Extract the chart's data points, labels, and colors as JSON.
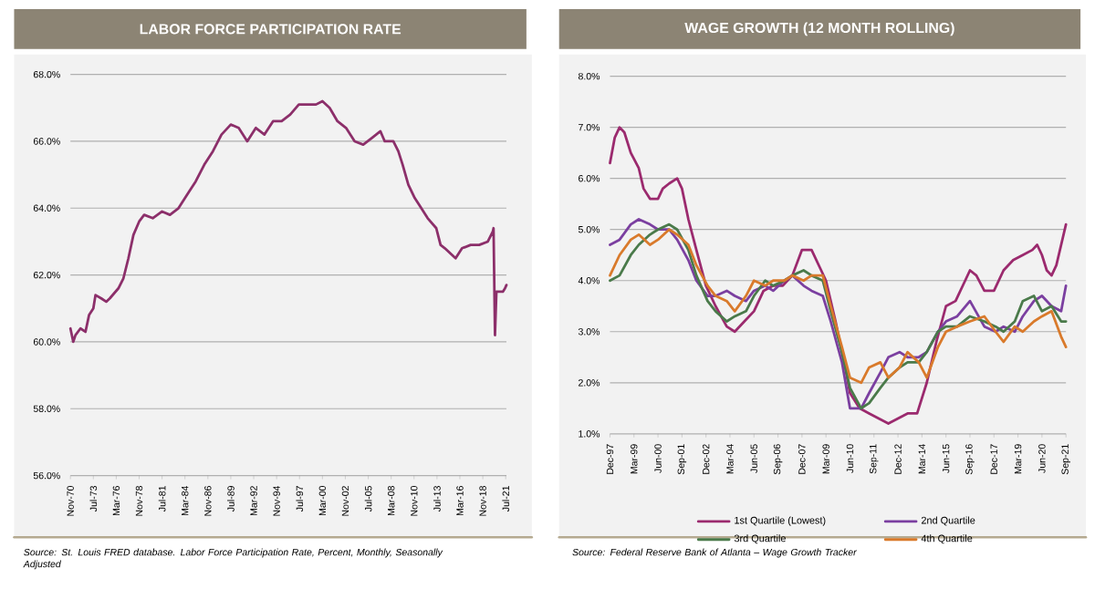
{
  "chart_data": [
    {
      "type": "line",
      "title": "LABOR FORCE PARTICIPATION RATE",
      "color": "#8c2f6a",
      "x": [
        "1970-11",
        "1971-03",
        "1971-06",
        "1972-01",
        "1972-08",
        "1973-01",
        "1973-07",
        "1973-10",
        "1974-06",
        "1975-01",
        "1975-06",
        "1976-06",
        "1977-01",
        "1977-08",
        "1978-03",
        "1978-11",
        "1979-06",
        "1980-06",
        "1981-07",
        "1982-06",
        "1983-06",
        "1984-06",
        "1985-06",
        "1986-06",
        "1987-06",
        "1988-06",
        "1989-07",
        "1990-06",
        "1991-06",
        "1992-06",
        "1993-06",
        "1994-06",
        "1995-06",
        "1996-06",
        "1997-06",
        "1998-06",
        "1999-06",
        "2000-03",
        "2001-01",
        "2001-12",
        "2002-12",
        "2003-12",
        "2004-12",
        "2005-12",
        "2006-12",
        "2007-06",
        "2008-06",
        "2009-01",
        "2009-07",
        "2010-03",
        "2010-12",
        "2011-06",
        "2012-06",
        "2013-06",
        "2013-12",
        "2014-06",
        "2015-09",
        "2016-06",
        "2017-06",
        "2018-06",
        "2019-06",
        "2020-01",
        "2020-02",
        "2020-04",
        "2020-06",
        "2020-12",
        "2021-03",
        "2021-06",
        "2021-08"
      ],
      "values": [
        60.4,
        60.0,
        60.2,
        60.4,
        60.3,
        60.8,
        61.0,
        61.4,
        61.3,
        61.2,
        61.3,
        61.6,
        61.9,
        62.5,
        63.2,
        63.6,
        63.8,
        63.7,
        63.9,
        63.8,
        64.0,
        64.4,
        64.8,
        65.3,
        65.7,
        66.2,
        66.5,
        66.4,
        66.0,
        66.4,
        66.2,
        66.6,
        66.6,
        66.8,
        67.1,
        67.1,
        67.1,
        67.2,
        67.0,
        66.6,
        66.4,
        66.0,
        65.9,
        66.1,
        66.3,
        66.0,
        66.0,
        65.7,
        65.3,
        64.7,
        64.3,
        64.1,
        63.7,
        63.4,
        62.9,
        62.8,
        62.5,
        62.8,
        62.9,
        62.9,
        63.0,
        63.3,
        63.4,
        60.2,
        61.5,
        61.5,
        61.5,
        61.6,
        61.7
      ],
      "xlim": [
        "1970-11",
        "2021-08"
      ],
      "xticks": [
        {
          "value": "1970-11",
          "label": "Nov-70"
        },
        {
          "value": "1973-07",
          "label": "Jul-73"
        },
        {
          "value": "1976-03",
          "label": "Mar-76"
        },
        {
          "value": "1978-11",
          "label": "Nov-78"
        },
        {
          "value": "1981-07",
          "label": "Jul-81"
        },
        {
          "value": "1984-03",
          "label": "Mar-84"
        },
        {
          "value": "1986-11",
          "label": "Nov-86"
        },
        {
          "value": "1989-07",
          "label": "Jul-89"
        },
        {
          "value": "1992-03",
          "label": "Mar-92"
        },
        {
          "value": "1994-11",
          "label": "Nov-94"
        },
        {
          "value": "1997-07",
          "label": "Jul-97"
        },
        {
          "value": "2000-03",
          "label": "Mar-00"
        },
        {
          "value": "2002-11",
          "label": "Nov-02"
        },
        {
          "value": "2005-07",
          "label": "Jul-05"
        },
        {
          "value": "2008-03",
          "label": "Mar-08"
        },
        {
          "value": "2010-11",
          "label": "Nov-10"
        },
        {
          "value": "2013-07",
          "label": "Jul-13"
        },
        {
          "value": "2016-03",
          "label": "Mar-16"
        },
        {
          "value": "2018-11",
          "label": "Nov-18"
        },
        {
          "value": "2021-07",
          "label": "Jul-21"
        }
      ],
      "ylim": [
        56,
        68
      ],
      "yticks": [
        {
          "value": 56,
          "label": "56.0%"
        },
        {
          "value": 58,
          "label": "58.0%"
        },
        {
          "value": 60,
          "label": "60.0%"
        },
        {
          "value": 62,
          "label": "62.0%"
        },
        {
          "value": 64,
          "label": "64.0%"
        },
        {
          "value": 66,
          "label": "66.0%"
        },
        {
          "value": 68,
          "label": "68.0%"
        }
      ],
      "grid": "y",
      "annotations": [
        "Source: St. Louis FRED database. Labor Force Participation Rate, Percent, Monthly, Seasonally Adjusted"
      ]
    },
    {
      "type": "line",
      "title": "WAGE GROWTH (12 MONTH ROLLING)",
      "series": [
        {
          "name": "1st Quartile (Lowest)",
          "color": "#9b2a6e",
          "x": [
            "1997-12",
            "1998-03",
            "1998-06",
            "1998-09",
            "1999-01",
            "1999-06",
            "1999-09",
            "2000-01",
            "2000-06",
            "2000-09",
            "2001-01",
            "2001-06",
            "2001-09",
            "2002-01",
            "2002-06",
            "2002-12",
            "2003-06",
            "2004-01",
            "2004-06",
            "2004-12",
            "2005-06",
            "2005-12",
            "2006-06",
            "2006-12",
            "2007-06",
            "2007-12",
            "2008-06",
            "2008-12",
            "2009-03",
            "2009-09",
            "2010-03",
            "2010-06",
            "2010-12",
            "2011-06",
            "2011-12",
            "2012-06",
            "2012-12",
            "2013-06",
            "2013-12",
            "2014-06",
            "2014-12",
            "2015-06",
            "2015-12",
            "2016-06",
            "2016-09",
            "2017-01",
            "2017-06",
            "2017-12",
            "2018-06",
            "2018-12",
            "2019-06",
            "2019-12",
            "2020-03",
            "2020-06",
            "2020-09",
            "2020-12",
            "2021-03",
            "2021-06",
            "2021-09"
          ],
          "values": [
            6.3,
            6.8,
            7.0,
            6.9,
            6.5,
            6.2,
            5.8,
            5.6,
            5.6,
            5.8,
            5.9,
            6.0,
            5.8,
            5.2,
            4.6,
            3.9,
            3.5,
            3.1,
            3.0,
            3.2,
            3.4,
            3.8,
            3.9,
            3.9,
            4.1,
            4.6,
            4.6,
            4.2,
            4.0,
            3.2,
            2.3,
            1.8,
            1.5,
            1.4,
            1.3,
            1.2,
            1.3,
            1.4,
            1.4,
            2.0,
            2.8,
            3.5,
            3.6,
            4.0,
            4.2,
            4.1,
            3.8,
            3.8,
            4.2,
            4.4,
            4.5,
            4.6,
            4.7,
            4.5,
            4.2,
            4.1,
            4.3,
            4.7,
            5.1
          ]
        },
        {
          "name": "2nd Quartile",
          "color": "#7b3fa0",
          "x": [
            "1997-12",
            "1998-06",
            "1999-01",
            "1999-06",
            "2000-01",
            "2000-06",
            "2001-01",
            "2001-06",
            "2002-01",
            "2002-06",
            "2003-01",
            "2003-06",
            "2004-01",
            "2004-06",
            "2005-01",
            "2005-06",
            "2006-01",
            "2006-06",
            "2007-01",
            "2007-06",
            "2008-01",
            "2008-06",
            "2009-01",
            "2009-06",
            "2010-01",
            "2010-06",
            "2011-01",
            "2011-06",
            "2012-01",
            "2012-06",
            "2013-01",
            "2013-06",
            "2014-01",
            "2014-06",
            "2015-01",
            "2015-06",
            "2016-01",
            "2016-09",
            "2017-06",
            "2018-01",
            "2018-06",
            "2019-01",
            "2019-06",
            "2020-01",
            "2020-06",
            "2020-12",
            "2021-06",
            "2021-09"
          ],
          "values": [
            4.7,
            4.8,
            5.1,
            5.2,
            5.1,
            5.0,
            5.0,
            4.8,
            4.4,
            4.0,
            3.7,
            3.7,
            3.8,
            3.7,
            3.6,
            3.8,
            3.9,
            3.8,
            4.0,
            4.1,
            3.9,
            3.8,
            3.7,
            3.2,
            2.4,
            1.5,
            1.5,
            1.8,
            2.2,
            2.5,
            2.6,
            2.5,
            2.5,
            2.6,
            3.0,
            3.2,
            3.3,
            3.6,
            3.1,
            3.0,
            3.1,
            3.0,
            3.3,
            3.6,
            3.7,
            3.5,
            3.4,
            3.9
          ]
        },
        {
          "name": "3rd Quartile",
          "color": "#4a7a4a",
          "x": [
            "1997-12",
            "1998-06",
            "1999-01",
            "1999-06",
            "2000-01",
            "2000-06",
            "2001-01",
            "2001-06",
            "2002-01",
            "2002-06",
            "2003-01",
            "2003-06",
            "2004-01",
            "2004-06",
            "2005-01",
            "2005-06",
            "2006-01",
            "2006-06",
            "2007-01",
            "2007-06",
            "2008-01",
            "2008-06",
            "2009-01",
            "2009-06",
            "2010-01",
            "2010-06",
            "2011-01",
            "2011-06",
            "2012-01",
            "2012-06",
            "2013-01",
            "2013-06",
            "2014-01",
            "2014-06",
            "2015-01",
            "2015-06",
            "2016-01",
            "2016-09",
            "2017-06",
            "2018-01",
            "2018-06",
            "2019-01",
            "2019-06",
            "2020-01",
            "2020-06",
            "2020-12",
            "2021-06",
            "2021-09"
          ],
          "values": [
            4.0,
            4.1,
            4.5,
            4.7,
            4.9,
            5.0,
            5.1,
            5.0,
            4.6,
            4.1,
            3.6,
            3.4,
            3.2,
            3.3,
            3.4,
            3.7,
            4.0,
            3.9,
            4.0,
            4.1,
            4.2,
            4.1,
            4.0,
            3.4,
            2.6,
            1.9,
            1.5,
            1.6,
            1.9,
            2.1,
            2.3,
            2.4,
            2.4,
            2.6,
            3.0,
            3.1,
            3.1,
            3.3,
            3.2,
            3.1,
            3.0,
            3.2,
            3.6,
            3.7,
            3.4,
            3.5,
            3.2,
            3.2
          ]
        },
        {
          "name": "4th Quartile",
          "color": "#d97a2b",
          "x": [
            "1997-12",
            "1998-06",
            "1999-01",
            "1999-06",
            "2000-01",
            "2000-06",
            "2001-01",
            "2001-06",
            "2002-01",
            "2002-06",
            "2003-01",
            "2003-06",
            "2004-01",
            "2004-06",
            "2005-01",
            "2005-06",
            "2006-01",
            "2006-06",
            "2007-01",
            "2007-06",
            "2008-01",
            "2008-06",
            "2009-01",
            "2009-06",
            "2010-01",
            "2010-06",
            "2011-01",
            "2011-06",
            "2012-01",
            "2012-06",
            "2013-01",
            "2013-06",
            "2014-01",
            "2014-06",
            "2015-01",
            "2015-06",
            "2016-01",
            "2016-09",
            "2017-06",
            "2018-01",
            "2018-06",
            "2019-01",
            "2019-06",
            "2020-01",
            "2020-06",
            "2020-12",
            "2021-06",
            "2021-09"
          ],
          "values": [
            4.1,
            4.5,
            4.8,
            4.9,
            4.7,
            4.8,
            5.0,
            4.9,
            4.7,
            4.3,
            3.9,
            3.7,
            3.6,
            3.4,
            3.7,
            4.0,
            3.9,
            4.0,
            4.0,
            4.1,
            4.0,
            4.1,
            4.1,
            3.5,
            2.7,
            2.1,
            2.0,
            2.3,
            2.4,
            2.1,
            2.3,
            2.6,
            2.4,
            2.1,
            2.7,
            3.0,
            3.1,
            3.2,
            3.3,
            3.0,
            2.8,
            3.1,
            3.0,
            3.2,
            3.3,
            3.4,
            2.9,
            2.7
          ]
        }
      ],
      "xlim": [
        "1997-12",
        "2021-09"
      ],
      "xticks": [
        {
          "value": "1997-12",
          "label": "Dec-97"
        },
        {
          "value": "1999-03",
          "label": "Mar-99"
        },
        {
          "value": "2000-06",
          "label": "Jun-00"
        },
        {
          "value": "2001-09",
          "label": "Sep-01"
        },
        {
          "value": "2002-12",
          "label": "Dec-02"
        },
        {
          "value": "2004-03",
          "label": "Mar-04"
        },
        {
          "value": "2005-06",
          "label": "Jun-05"
        },
        {
          "value": "2006-09",
          "label": "Sep-06"
        },
        {
          "value": "2007-12",
          "label": "Dec-07"
        },
        {
          "value": "2009-03",
          "label": "Mar-09"
        },
        {
          "value": "2010-06",
          "label": "Jun-10"
        },
        {
          "value": "2011-09",
          "label": "Sep-11"
        },
        {
          "value": "2012-12",
          "label": "Dec-12"
        },
        {
          "value": "2014-03",
          "label": "Mar-14"
        },
        {
          "value": "2015-06",
          "label": "Jun-15"
        },
        {
          "value": "2016-09",
          "label": "Sep-16"
        },
        {
          "value": "2017-12",
          "label": "Dec-17"
        },
        {
          "value": "2019-03",
          "label": "Mar-19"
        },
        {
          "value": "2020-06",
          "label": "Jun-20"
        },
        {
          "value": "2021-09",
          "label": "Sep-21"
        }
      ],
      "ylim": [
        1,
        8
      ],
      "yticks": [
        {
          "value": 1,
          "label": "1.0%"
        },
        {
          "value": 2,
          "label": "2.0%"
        },
        {
          "value": 3,
          "label": "3.0%"
        },
        {
          "value": 4,
          "label": "4.0%"
        },
        {
          "value": 5,
          "label": "5.0%"
        },
        {
          "value": 6,
          "label": "6.0%"
        },
        {
          "value": 7,
          "label": "7.0%"
        },
        {
          "value": 8,
          "label": "8.0%"
        }
      ],
      "grid": "y",
      "legend": "bottom",
      "annotations": [
        "Source: Federal Reserve Bank of Atlanta – Wage Growth Tracker"
      ]
    }
  ]
}
